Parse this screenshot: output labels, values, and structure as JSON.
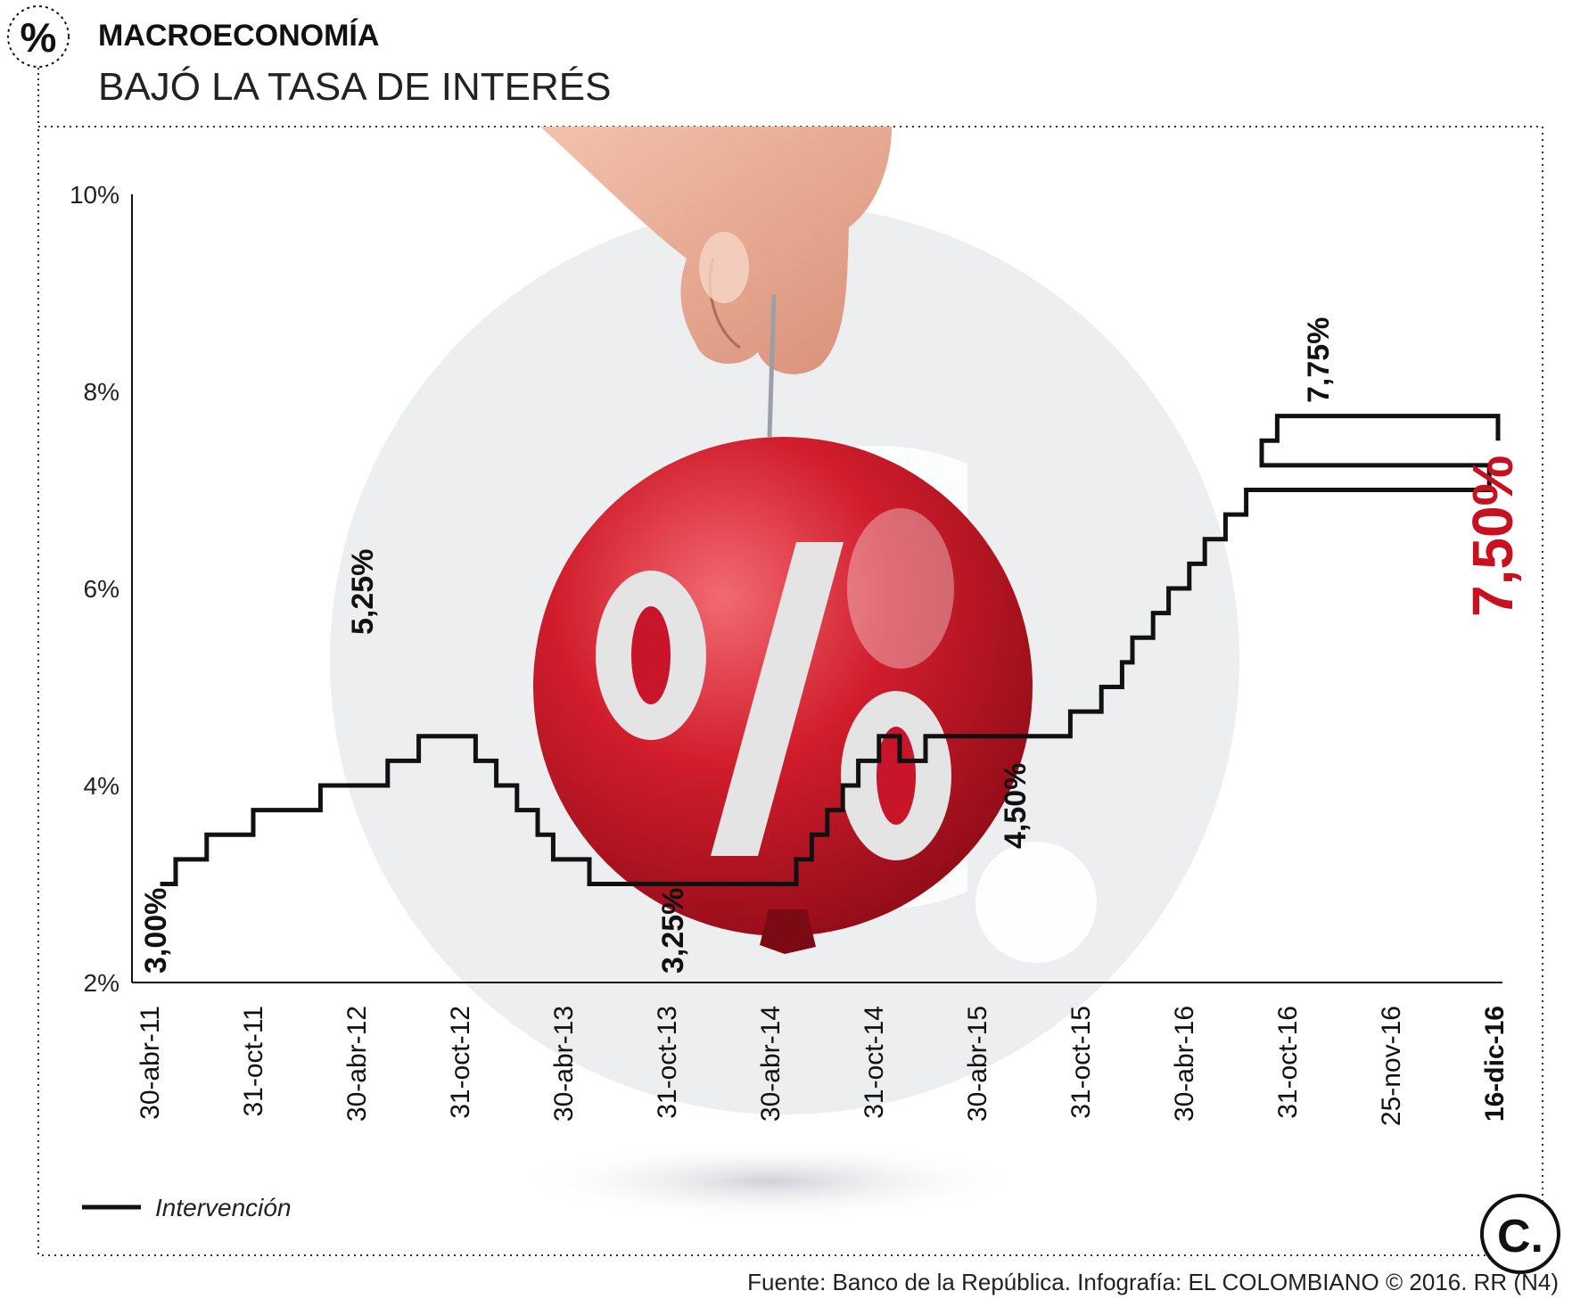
{
  "header": {
    "section": "MACROECONOMÍA",
    "title": "BAJÓ LA TASA DE INTERÉS",
    "section_icon": "percent-icon"
  },
  "chart_data": {
    "type": "line",
    "title": "BAJÓ LA TASA DE INTERÉS",
    "xlabel": "",
    "ylabel": "",
    "ylim": [
      2,
      10
    ],
    "y_ticks": [
      "2%",
      "4%",
      "6%",
      "8%",
      "10%"
    ],
    "y_tick_values": [
      2,
      4,
      6,
      8,
      10
    ],
    "x_ticks": [
      "30-abr-11",
      "31-oct-11",
      "30-abr-12",
      "31-oct-12",
      "30-abr-13",
      "31-oct-13",
      "30-abr-14",
      "31-oct-14",
      "30-abr-15",
      "31-oct-15",
      "30-abr-16",
      "31-oct-16",
      "25-nov-16",
      "16-dic-16"
    ],
    "series": [
      {
        "name": "Intervención",
        "x": [
          0.1,
          0.25,
          0.55,
          1.0,
          1.65,
          2.3,
          2.6,
          3.15,
          3.35,
          3.55,
          3.75,
          3.9,
          4.25,
          6.1,
          6.25,
          6.4,
          6.55,
          6.7,
          6.85,
          7.05,
          7.25,
          7.5,
          8.0,
          8.15,
          8.35,
          8.5,
          8.7,
          8.9,
          9.2,
          9.4,
          9.5,
          9.7,
          9.85,
          10.05,
          10.2,
          10.4,
          10.6,
          12.95
        ],
        "values": [
          3.0,
          3.25,
          3.5,
          3.75,
          4.0,
          4.25,
          4.5,
          4.25,
          4.0,
          3.75,
          3.5,
          3.25,
          3.0,
          3.0,
          3.25,
          3.5,
          3.75,
          4.0,
          4.25,
          4.5,
          4.25,
          4.5,
          4.5,
          4.5,
          4.5,
          4.5,
          4.5,
          4.75,
          5.0,
          5.25,
          5.5,
          5.75,
          6.0,
          6.25,
          6.5,
          6.75,
          7.0,
          7.25
        ]
      }
    ],
    "annotations": [
      {
        "text": "3,00%",
        "value": 3.0
      },
      {
        "text": "5,25%",
        "value": 5.25
      },
      {
        "text": "3,25%",
        "value": 3.25
      },
      {
        "text": "4,50%",
        "value": 4.5
      },
      {
        "text": "7,75%",
        "value": 7.75
      },
      {
        "text": "7,50%",
        "value": 7.5
      }
    ],
    "legend": "bottom-left",
    "grid": false
  },
  "legend": {
    "label": "Intervención"
  },
  "footer": {
    "source": "Fuente: Banco de la República. Infografía: EL COLOMBIANO © 2016. RR (N4)",
    "logo_text": "C."
  },
  "colors": {
    "line": "#111111",
    "accent": "#c8101e",
    "watermark": "#eceef0"
  }
}
